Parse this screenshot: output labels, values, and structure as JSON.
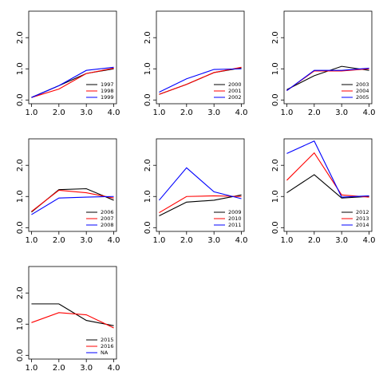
{
  "chart_data": [
    {
      "type": "line",
      "x": [
        1,
        2,
        3,
        4
      ],
      "xlim": [
        0.9,
        4.1
      ],
      "ylim": [
        -0.12,
        2.85
      ],
      "xticks": [
        {
          "value": 1,
          "label": "1.0"
        },
        {
          "value": 2,
          "label": "2.0"
        },
        {
          "value": 3,
          "label": "3.0"
        },
        {
          "value": 4,
          "label": "4.0"
        }
      ],
      "yticks": [
        {
          "value": 0,
          "label": "0.0"
        },
        {
          "value": 1,
          "label": "1.0"
        },
        {
          "value": 2,
          "label": "2.0"
        }
      ],
      "series": [
        {
          "name": "1997",
          "color": "#000000",
          "values": [
            0.08,
            0.46,
            0.85,
            1.0
          ]
        },
        {
          "name": "1998",
          "color": "#ff0000",
          "values": [
            0.08,
            0.35,
            0.85,
            1.02
          ]
        },
        {
          "name": "1999",
          "color": "#0000ff",
          "values": [
            0.08,
            0.46,
            0.95,
            1.05
          ]
        }
      ]
    },
    {
      "type": "line",
      "x": [
        1,
        2,
        3,
        4
      ],
      "xlim": [
        0.9,
        4.1
      ],
      "ylim": [
        -0.12,
        2.85
      ],
      "xticks": [
        {
          "value": 1,
          "label": "1.0"
        },
        {
          "value": 2,
          "label": "2.0"
        },
        {
          "value": 3,
          "label": "3.0"
        },
        {
          "value": 4,
          "label": "4.0"
        }
      ],
      "yticks": [
        {
          "value": 0,
          "label": "0.0"
        },
        {
          "value": 1,
          "label": "1.0"
        },
        {
          "value": 2,
          "label": "2.0"
        }
      ],
      "series": [
        {
          "name": "2000",
          "color": "#000000",
          "values": [
            0.18,
            0.5,
            0.88,
            1.03
          ]
        },
        {
          "name": "2001",
          "color": "#ff0000",
          "values": [
            0.18,
            0.5,
            0.88,
            1.05
          ]
        },
        {
          "name": "2002",
          "color": "#0000ff",
          "values": [
            0.25,
            0.68,
            0.98,
            1.0
          ]
        }
      ]
    },
    {
      "type": "line",
      "x": [
        1,
        2,
        3,
        4
      ],
      "xlim": [
        0.9,
        4.1
      ],
      "ylim": [
        -0.12,
        2.85
      ],
      "xticks": [
        {
          "value": 1,
          "label": "1.0"
        },
        {
          "value": 2,
          "label": "2.0"
        },
        {
          "value": 3,
          "label": "3.0"
        },
        {
          "value": 4,
          "label": "4.0"
        }
      ],
      "yticks": [
        {
          "value": 0,
          "label": "0.0"
        },
        {
          "value": 1,
          "label": "1.0"
        },
        {
          "value": 2,
          "label": "2.0"
        }
      ],
      "series": [
        {
          "name": "2003",
          "color": "#000000",
          "values": [
            0.33,
            0.78,
            1.08,
            0.95
          ]
        },
        {
          "name": "2004",
          "color": "#ff0000",
          "values": [
            0.3,
            0.93,
            0.93,
            1.0
          ]
        },
        {
          "name": "2005",
          "color": "#0000ff",
          "values": [
            0.3,
            0.95,
            0.95,
            1.02
          ]
        }
      ]
    },
    {
      "type": "line",
      "x": [
        1,
        2,
        3,
        4
      ],
      "xlim": [
        0.9,
        4.1
      ],
      "ylim": [
        -0.12,
        2.85
      ],
      "xticks": [
        {
          "value": 1,
          "label": "1.0"
        },
        {
          "value": 2,
          "label": "2.0"
        },
        {
          "value": 3,
          "label": "3.0"
        },
        {
          "value": 4,
          "label": "4.0"
        }
      ],
      "yticks": [
        {
          "value": 0,
          "label": "0.0"
        },
        {
          "value": 1,
          "label": "1.0"
        },
        {
          "value": 2,
          "label": "2.0"
        }
      ],
      "series": [
        {
          "name": "2006",
          "color": "#000000",
          "values": [
            0.5,
            1.22,
            1.25,
            0.88
          ]
        },
        {
          "name": "2007",
          "color": "#ff0000",
          "values": [
            0.52,
            1.2,
            1.12,
            0.95
          ]
        },
        {
          "name": "2008",
          "color": "#0000ff",
          "values": [
            0.42,
            0.95,
            0.98,
            1.0
          ]
        }
      ]
    },
    {
      "type": "line",
      "x": [
        1,
        2,
        3,
        4
      ],
      "xlim": [
        0.9,
        4.1
      ],
      "ylim": [
        -0.12,
        2.85
      ],
      "xticks": [
        {
          "value": 1,
          "label": "1.0"
        },
        {
          "value": 2,
          "label": "2.0"
        },
        {
          "value": 3,
          "label": "3.0"
        },
        {
          "value": 4,
          "label": "4.0"
        }
      ],
      "yticks": [
        {
          "value": 0,
          "label": "0.0"
        },
        {
          "value": 1,
          "label": "1.0"
        },
        {
          "value": 2,
          "label": "2.0"
        }
      ],
      "series": [
        {
          "name": "2009",
          "color": "#000000",
          "values": [
            0.38,
            0.82,
            0.88,
            1.05
          ]
        },
        {
          "name": "2010",
          "color": "#ff0000",
          "values": [
            0.48,
            1.0,
            1.02,
            1.0
          ]
        },
        {
          "name": "2011",
          "color": "#0000ff",
          "values": [
            0.88,
            1.92,
            1.15,
            0.93
          ]
        }
      ]
    },
    {
      "type": "line",
      "x": [
        1,
        2,
        3,
        4
      ],
      "xlim": [
        0.9,
        4.1
      ],
      "ylim": [
        -0.12,
        2.85
      ],
      "xticks": [
        {
          "value": 1,
          "label": "1.0"
        },
        {
          "value": 2,
          "label": "2.0"
        },
        {
          "value": 3,
          "label": "3.0"
        },
        {
          "value": 4,
          "label": "4.0"
        }
      ],
      "yticks": [
        {
          "value": 0,
          "label": "0.0"
        },
        {
          "value": 1,
          "label": "1.0"
        },
        {
          "value": 2,
          "label": "2.0"
        }
      ],
      "series": [
        {
          "name": "2012",
          "color": "#000000",
          "values": [
            1.12,
            1.7,
            0.95,
            1.0
          ]
        },
        {
          "name": "2013",
          "color": "#ff0000",
          "values": [
            1.52,
            2.4,
            1.05,
            0.98
          ]
        },
        {
          "name": "2014",
          "color": "#0000ff",
          "values": [
            2.38,
            2.78,
            0.98,
            1.02
          ]
        }
      ]
    },
    {
      "type": "line",
      "x": [
        1,
        2,
        3,
        4
      ],
      "xlim": [
        0.9,
        4.1
      ],
      "ylim": [
        -0.12,
        2.85
      ],
      "xticks": [
        {
          "value": 1,
          "label": "1.0"
        },
        {
          "value": 2,
          "label": "2.0"
        },
        {
          "value": 3,
          "label": "3.0"
        },
        {
          "value": 4,
          "label": "4.0"
        }
      ],
      "yticks": [
        {
          "value": 0,
          "label": "0.0"
        },
        {
          "value": 1,
          "label": "1.0"
        },
        {
          "value": 2,
          "label": "2.0"
        }
      ],
      "series": [
        {
          "name": "2015",
          "color": "#000000",
          "values": [
            1.65,
            1.65,
            1.12,
            0.95
          ]
        },
        {
          "name": "2016",
          "color": "#ff0000",
          "values": [
            1.05,
            1.37,
            1.3,
            0.88
          ]
        },
        {
          "name": "NA",
          "color": "#0000ff",
          "values": [
            null,
            null,
            null,
            null
          ]
        }
      ]
    }
  ]
}
